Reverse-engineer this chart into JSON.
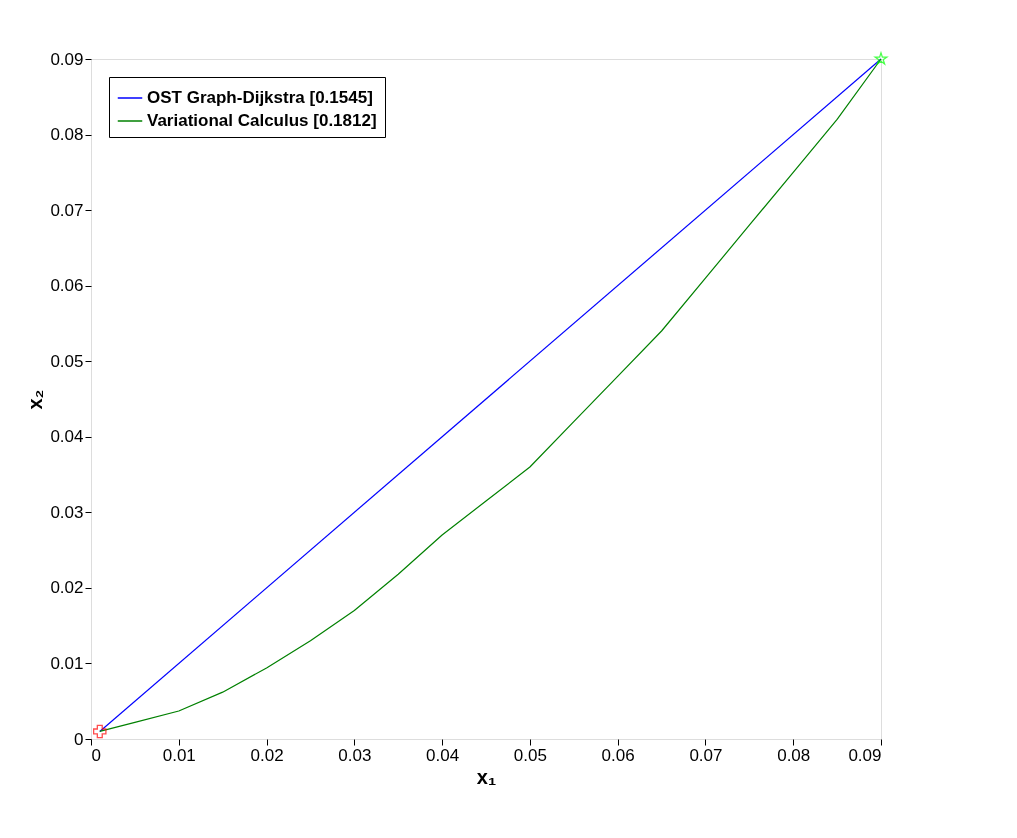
{
  "chart_data": {
    "type": "line",
    "xlabel": "x₁",
    "ylabel": "x₂",
    "xlim": [
      0,
      0.09
    ],
    "ylim": [
      0,
      0.09
    ],
    "xticks": [
      0,
      0.01,
      0.02,
      0.03,
      0.04,
      0.05,
      0.06,
      0.07,
      0.08,
      0.09
    ],
    "yticks": [
      0,
      0.01,
      0.02,
      0.03,
      0.04,
      0.05,
      0.06,
      0.07,
      0.08,
      0.09
    ],
    "legend": "top left",
    "marker": "none",
    "line_style": "solid",
    "series": [
      {
        "name": "OST Graph-Dijkstra [0.1545]",
        "color": "#0000ff",
        "x": [
          0.001,
          0.09
        ],
        "values": [
          0.001,
          0.09
        ]
      },
      {
        "name": "Variational Calculus [0.1812]",
        "color": "#008000",
        "x": [
          0.001,
          0.005,
          0.01,
          0.015,
          0.02,
          0.025,
          0.03,
          0.035,
          0.04,
          0.045,
          0.05,
          0.055,
          0.06,
          0.065,
          0.07,
          0.075,
          0.08,
          0.085,
          0.09
        ],
        "values": [
          0.001,
          0.0022,
          0.0037,
          0.0062,
          0.0094,
          0.013,
          0.017,
          0.0218,
          0.027,
          0.0315,
          0.036,
          0.042,
          0.048,
          0.054,
          0.061,
          0.068,
          0.075,
          0.082,
          0.09
        ]
      },
      {
        "type": "scatter",
        "marker": "cross",
        "color": "#ff0000",
        "x": [
          0.001
        ],
        "values": [
          0.001
        ]
      },
      {
        "type": "scatter",
        "marker": "star",
        "color": "#00ff00",
        "x": [
          0.09
        ],
        "values": [
          0.09
        ]
      }
    ]
  }
}
